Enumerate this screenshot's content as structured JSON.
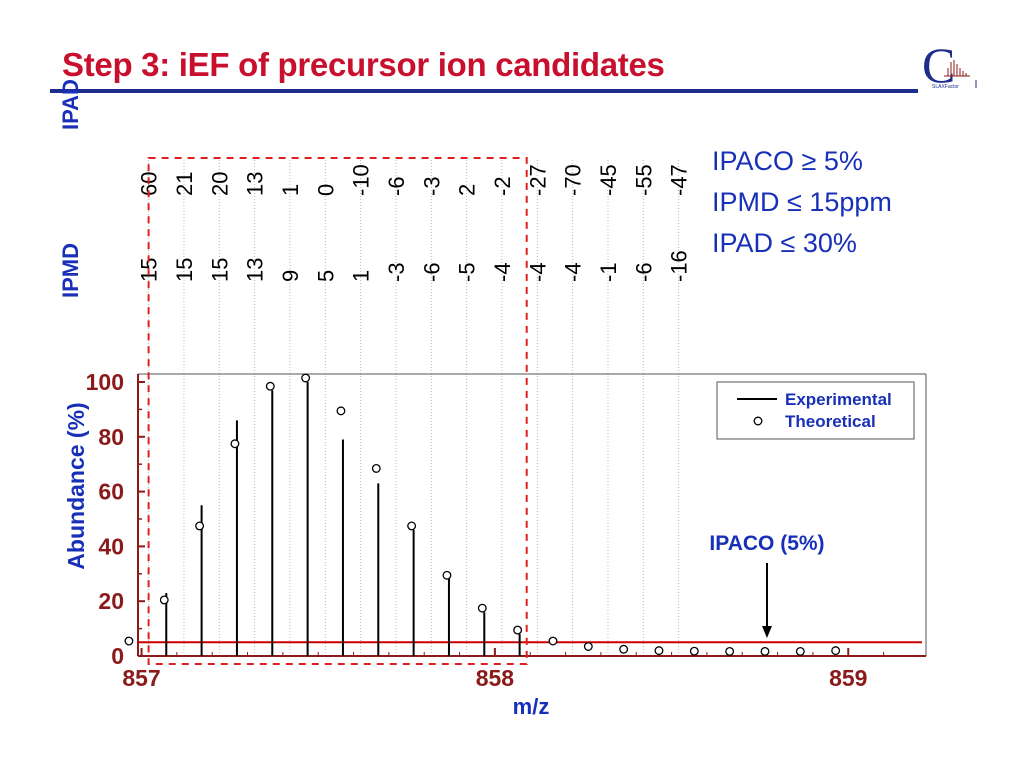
{
  "slide": {
    "title": "Step 3: iEF of precursor ion candidates",
    "logo_text": "C",
    "logo_caption": "SLAXFactor"
  },
  "criteria": [
    "IPACO ≥ 5%",
    "IPMD ≤ 15ppm",
    "IPAD ≤ 30%"
  ],
  "colors": {
    "title": "#c8102e",
    "rule": "#1e2c8c",
    "text_blue": "#1830b8",
    "tick_red": "#8b1a1a",
    "threshold_red": "#cc0000",
    "window_red": "#e02020"
  },
  "chart_data": {
    "type": "scatter",
    "xlabel": "m/z",
    "ylabel": "Abundance (%)",
    "xlim": [
      856.99,
      859.22
    ],
    "ylim": [
      0,
      100
    ],
    "x_ticks": [
      "857",
      "858",
      "859"
    ],
    "y_ticks": [
      "0",
      "20",
      "40",
      "60",
      "80",
      "100"
    ],
    "legend": {
      "placement": "top-right",
      "entries": [
        "Experimental",
        "Theoretical"
      ]
    },
    "series": [
      {
        "name": "Experimental",
        "style": "sticks",
        "x": [
          857.07,
          857.17,
          857.27,
          857.37,
          857.47,
          857.57,
          857.67,
          857.77,
          857.87,
          857.97,
          858.07
        ],
        "y": [
          23,
          55,
          86,
          97,
          100,
          79,
          63,
          46,
          29,
          16,
          8
        ]
      },
      {
        "name": "Theoretical",
        "style": "open-circles",
        "x": [
          856.97,
          857.07,
          857.17,
          857.27,
          857.37,
          857.47,
          857.57,
          857.67,
          857.77,
          857.87,
          857.97,
          858.07,
          858.17,
          858.27,
          858.37,
          858.47,
          858.57,
          858.67,
          858.77,
          858.87,
          858.97
        ],
        "y": [
          4,
          19,
          46,
          76,
          97,
          100,
          88,
          67,
          46,
          28,
          16,
          8,
          4,
          2,
          1,
          0.5,
          0.3,
          0.2,
          0.2,
          0.2,
          0.5
        ]
      }
    ],
    "threshold": {
      "label": "IPACO (5%)",
      "y": 5,
      "arrow_x": 858.77
    },
    "selection_window": {
      "x": [
        857.02,
        858.09
      ]
    },
    "peak_table": {
      "rows": [
        {
          "name": "IPAD",
          "x": [
            857.02,
            857.12,
            857.22,
            857.32,
            857.42,
            857.52,
            857.62,
            857.72,
            857.82,
            857.92,
            858.02,
            858.12,
            858.22,
            858.32,
            858.42,
            858.52
          ],
          "values": [
            "60",
            "21",
            "20",
            "13",
            "1",
            "0",
            "-10",
            "-6",
            "-3",
            "2",
            "-2",
            "-27",
            "-70",
            "-45",
            "-55",
            "-47"
          ]
        },
        {
          "name": "IPMD",
          "x": [
            857.02,
            857.12,
            857.22,
            857.32,
            857.42,
            857.52,
            857.62,
            857.72,
            857.82,
            857.92,
            858.02,
            858.12,
            858.22,
            858.32,
            858.42,
            858.52
          ],
          "values": [
            "15",
            "15",
            "15",
            "13",
            "9",
            "5",
            "1",
            "-3",
            "-6",
            "-5",
            "-4",
            "-4",
            "-4",
            "-1",
            "-6",
            "-16"
          ]
        }
      ]
    }
  }
}
